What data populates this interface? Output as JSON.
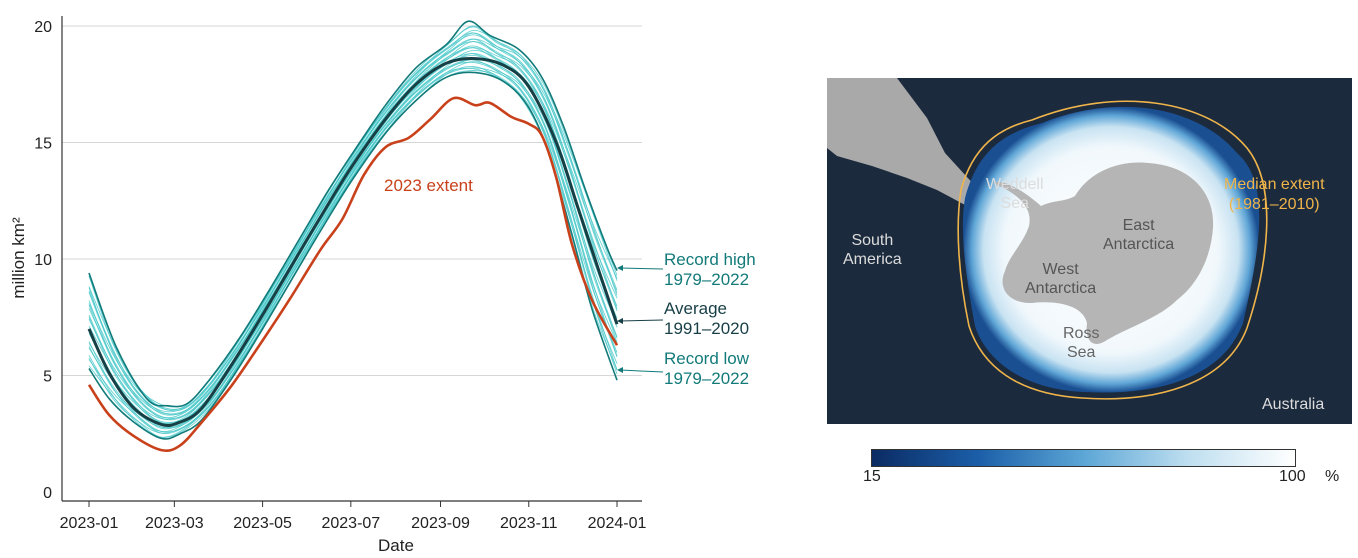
{
  "chart_data": [
    {
      "type": "line",
      "xlabel": "Date",
      "ylabel": "million km²",
      "x_domain": [
        "2023-01-01",
        "2024-01-01"
      ],
      "ylim": [
        0,
        20.5
      ],
      "x_tick_labels": [
        "2023-01",
        "2023-03",
        "2023-05",
        "2023-07",
        "2023-09",
        "2023-11",
        "2024-01"
      ],
      "y_tick_labels": [
        "0",
        "5",
        "10",
        "15",
        "20"
      ],
      "y_ticks": [
        0,
        5,
        10,
        15,
        20
      ],
      "grid": true,
      "colors": {
        "extent_2023": "#c8411b",
        "average": "#173f46",
        "records": "#137a7a",
        "ensemble": "#3fc4c6"
      },
      "series": [
        {
          "name": "2023 extent",
          "color": "#c8411b",
          "points": [
            [
              "2023-01-01",
              4.6
            ],
            [
              "2023-01-15",
              3.3
            ],
            [
              "2023-02-01",
              2.4
            ],
            [
              "2023-02-20",
              1.8
            ],
            [
              "2023-03-05",
              2.0
            ],
            [
              "2023-03-20",
              3.0
            ],
            [
              "2023-04-10",
              4.6
            ],
            [
              "2023-05-01",
              6.5
            ],
            [
              "2023-05-20",
              8.3
            ],
            [
              "2023-06-10",
              10.4
            ],
            [
              "2023-06-25",
              11.7
            ],
            [
              "2023-07-10",
              13.6
            ],
            [
              "2023-07-25",
              14.8
            ],
            [
              "2023-08-10",
              15.2
            ],
            [
              "2023-08-25",
              16.0
            ],
            [
              "2023-09-10",
              16.9
            ],
            [
              "2023-09-25",
              16.6
            ],
            [
              "2023-10-05",
              16.7
            ],
            [
              "2023-10-20",
              16.1
            ],
            [
              "2023-11-01",
              15.8
            ],
            [
              "2023-11-10",
              15.3
            ],
            [
              "2023-11-20",
              13.5
            ],
            [
              "2023-12-01",
              10.6
            ],
            [
              "2023-12-15",
              8.2
            ],
            [
              "2024-01-01",
              6.3
            ]
          ]
        },
        {
          "name": "Average",
          "label_line2": "1991–2020",
          "color": "#173f46",
          "points": [
            [
              "2023-01-01",
              7.0
            ],
            [
              "2023-01-15",
              5.1
            ],
            [
              "2023-02-01",
              3.6
            ],
            [
              "2023-02-20",
              2.9
            ],
            [
              "2023-03-05",
              3.0
            ],
            [
              "2023-03-20",
              3.6
            ],
            [
              "2023-04-10",
              5.5
            ],
            [
              "2023-05-01",
              7.6
            ],
            [
              "2023-05-20",
              9.6
            ],
            [
              "2023-06-10",
              11.8
            ],
            [
              "2023-07-01",
              13.9
            ],
            [
              "2023-07-25",
              16.0
            ],
            [
              "2023-08-15",
              17.5
            ],
            [
              "2023-09-05",
              18.4
            ],
            [
              "2023-09-25",
              18.6
            ],
            [
              "2023-10-15",
              18.3
            ],
            [
              "2023-11-01",
              17.4
            ],
            [
              "2023-11-20",
              15.0
            ],
            [
              "2023-12-05",
              12.2
            ],
            [
              "2023-12-20",
              9.4
            ],
            [
              "2024-01-01",
              7.2
            ]
          ]
        },
        {
          "name": "Record high",
          "label_line2": "1979–2022",
          "color": "#137a7a",
          "points": [
            [
              "2023-01-01",
              9.4
            ],
            [
              "2023-01-20",
              6.2
            ],
            [
              "2023-02-10",
              4.0
            ],
            [
              "2023-02-25",
              3.7
            ],
            [
              "2023-03-10",
              3.8
            ],
            [
              "2023-03-25",
              4.8
            ],
            [
              "2023-04-15",
              6.6
            ],
            [
              "2023-05-05",
              8.6
            ],
            [
              "2023-05-25",
              10.7
            ],
            [
              "2023-06-15",
              12.9
            ],
            [
              "2023-07-05",
              14.8
            ],
            [
              "2023-07-25",
              16.6
            ],
            [
              "2023-08-15",
              18.2
            ],
            [
              "2023-09-05",
              19.2
            ],
            [
              "2023-09-20",
              20.2
            ],
            [
              "2023-10-05",
              19.6
            ],
            [
              "2023-10-25",
              19.0
            ],
            [
              "2023-11-10",
              17.8
            ],
            [
              "2023-11-25",
              15.7
            ],
            [
              "2023-12-10",
              13.0
            ],
            [
              "2023-12-25",
              10.5
            ],
            [
              "2024-01-01",
              9.5
            ]
          ]
        },
        {
          "name": "Record low",
          "label_line2": "1979–2022",
          "color": "#137a7a",
          "points": [
            [
              "2023-01-01",
              5.3
            ],
            [
              "2023-01-15",
              4.0
            ],
            [
              "2023-02-01",
              3.0
            ],
            [
              "2023-02-20",
              2.3
            ],
            [
              "2023-03-05",
              2.5
            ],
            [
              "2023-03-20",
              3.1
            ],
            [
              "2023-04-10",
              4.9
            ],
            [
              "2023-05-01",
              7.0
            ],
            [
              "2023-05-20",
              9.0
            ],
            [
              "2023-06-10",
              11.2
            ],
            [
              "2023-07-01",
              13.3
            ],
            [
              "2023-07-25",
              15.4
            ],
            [
              "2023-08-15",
              16.8
            ],
            [
              "2023-09-05",
              17.8
            ],
            [
              "2023-09-25",
              18.0
            ],
            [
              "2023-10-15",
              17.6
            ],
            [
              "2023-11-01",
              16.5
            ],
            [
              "2023-11-15",
              14.5
            ],
            [
              "2023-12-01",
              11.0
            ],
            [
              "2023-12-15",
              7.8
            ],
            [
              "2024-01-01",
              4.8
            ]
          ]
        }
      ],
      "annotations": {
        "extent_2023": "2023 extent",
        "record_high": [
          "Record high",
          "1979–2022"
        ],
        "average": [
          "Average",
          "1991–2020"
        ],
        "record_low": [
          "Record low",
          "1979–2022"
        ]
      }
    },
    {
      "type": "map",
      "labels": {
        "weddell": [
          "Weddell",
          "Sea"
        ],
        "east": [
          "East",
          "Antarctica"
        ],
        "west": [
          "West",
          "Antarctica"
        ],
        "ross": [
          "Ross",
          "Sea"
        ],
        "south_america": [
          "South",
          "America"
        ],
        "australia": "Australia",
        "median": [
          "Median extent",
          "(1981–2010)"
        ]
      },
      "colors": {
        "ocean": "#1c2a3e",
        "ice_high": "#ffffff",
        "ice_low": "#0b2b63",
        "land": "#b5b5b5",
        "median_line": "#f0b54a"
      },
      "colorbar": {
        "min_label": "15",
        "max_label": "100",
        "unit": "%"
      }
    }
  ]
}
